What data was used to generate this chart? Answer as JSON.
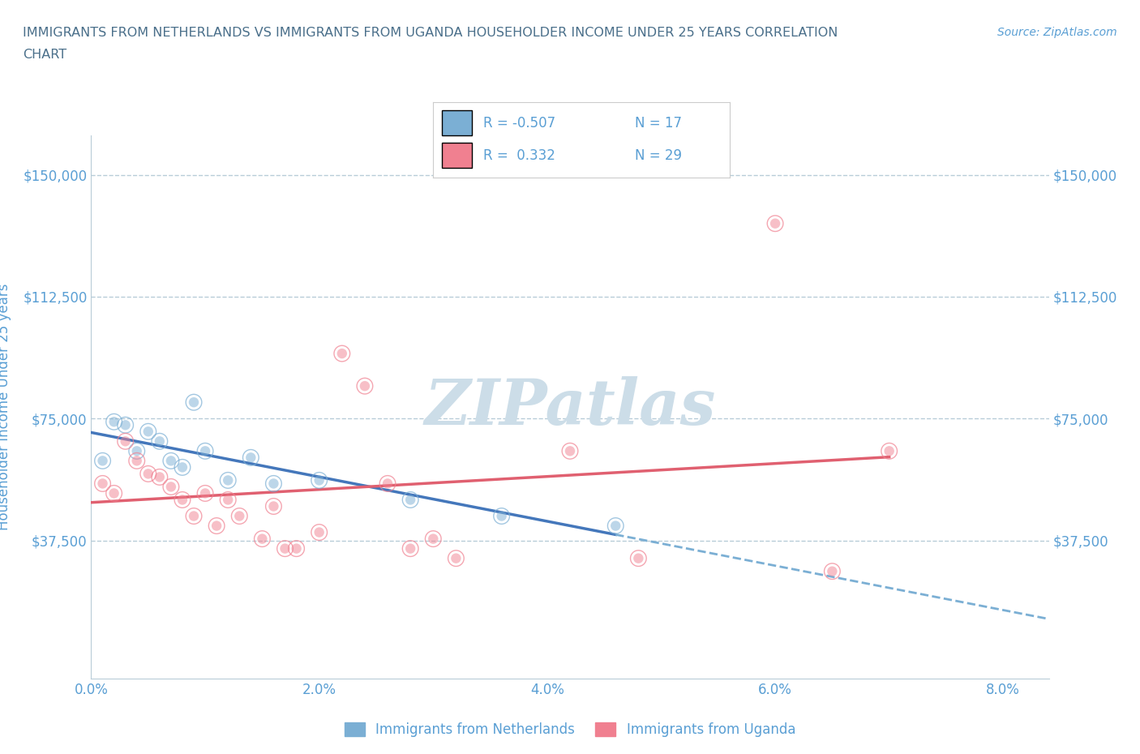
{
  "title_line1": "IMMIGRANTS FROM NETHERLANDS VS IMMIGRANTS FROM UGANDA HOUSEHOLDER INCOME UNDER 25 YEARS CORRELATION",
  "title_line2": "CHART",
  "source": "Source: ZipAtlas.com",
  "ylabel": "Householder Income Under 25 years",
  "xlabel_ticks": [
    "0.0%",
    "2.0%",
    "4.0%",
    "6.0%",
    "8.0%"
  ],
  "xlabel_vals": [
    0.0,
    0.02,
    0.04,
    0.06,
    0.08
  ],
  "yticks": [
    0,
    37500,
    75000,
    112500,
    150000
  ],
  "ytick_labels": [
    "",
    "$37,500",
    "$75,000",
    "$112,500",
    "$150,000"
  ],
  "xlim": [
    0.0,
    0.084
  ],
  "ylim": [
    -5000,
    162000
  ],
  "watermark": "ZIPatlas",
  "netherlands_x": [
    0.001,
    0.002,
    0.003,
    0.004,
    0.005,
    0.006,
    0.007,
    0.008,
    0.009,
    0.01,
    0.012,
    0.014,
    0.016,
    0.02,
    0.028,
    0.036,
    0.046
  ],
  "netherlands_y": [
    62000,
    74000,
    73000,
    65000,
    71000,
    68000,
    62000,
    60000,
    80000,
    65000,
    56000,
    63000,
    55000,
    56000,
    50000,
    45000,
    42000
  ],
  "netherlands_color": "#7bafd4",
  "netherlands_R": -0.507,
  "netherlands_N": 17,
  "uganda_x": [
    0.001,
    0.002,
    0.003,
    0.004,
    0.005,
    0.006,
    0.007,
    0.008,
    0.009,
    0.01,
    0.011,
    0.012,
    0.013,
    0.015,
    0.016,
    0.017,
    0.018,
    0.02,
    0.022,
    0.024,
    0.026,
    0.028,
    0.03,
    0.032,
    0.042,
    0.048,
    0.06,
    0.065,
    0.07
  ],
  "uganda_y": [
    55000,
    52000,
    68000,
    62000,
    58000,
    57000,
    54000,
    50000,
    45000,
    52000,
    42000,
    50000,
    45000,
    38000,
    48000,
    35000,
    35000,
    40000,
    95000,
    85000,
    55000,
    35000,
    38000,
    32000,
    65000,
    32000,
    135000,
    28000,
    65000
  ],
  "uganda_color": "#f08090",
  "uganda_R": 0.332,
  "uganda_N": 29,
  "background_color": "#ffffff",
  "grid_color": "#b8ccd8",
  "title_color": "#4a6f8a",
  "tick_color": "#5a9fd4",
  "watermark_color": "#ccdde8",
  "legend_border_color": "#cccccc",
  "nl_line_color": "#4477bb",
  "ug_line_color": "#e06070"
}
